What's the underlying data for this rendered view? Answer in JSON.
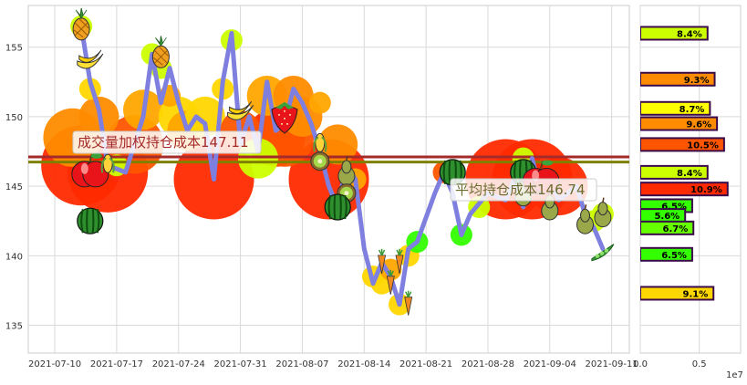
{
  "chart_data": [
    {
      "type": "line",
      "x_ticks": [
        "2021-07-10",
        "2021-07-17",
        "2021-07-24",
        "2021-07-31",
        "2021-08-07",
        "2021-08-14",
        "2021-08-21",
        "2021-08-28",
        "2021-09-04",
        "2021-09-11"
      ],
      "y_ticks": [
        "135",
        "140",
        "145",
        "150",
        "155"
      ],
      "ylim": [
        133,
        158
      ],
      "grid": true,
      "price_series": [
        {
          "x": "2021-07-13",
          "y": 156.5
        },
        {
          "x": "2021-07-14",
          "y": 152.5
        },
        {
          "x": "2021-07-15",
          "y": 150.5
        },
        {
          "x": "2021-07-16",
          "y": 146.5
        },
        {
          "x": "2021-07-18",
          "y": 146.0
        },
        {
          "x": "2021-07-19",
          "y": 148.0
        },
        {
          "x": "2021-07-20",
          "y": 150.0
        },
        {
          "x": "2021-07-21",
          "y": 154.5
        },
        {
          "x": "2021-07-22",
          "y": 151.0
        },
        {
          "x": "2021-07-23",
          "y": 153.5
        },
        {
          "x": "2021-07-24",
          "y": 151.0
        },
        {
          "x": "2021-07-25",
          "y": 149.0
        },
        {
          "x": "2021-07-26",
          "y": 150.0
        },
        {
          "x": "2021-07-27",
          "y": 149.5
        },
        {
          "x": "2021-07-28",
          "y": 145.5
        },
        {
          "x": "2021-07-29",
          "y": 152.5
        },
        {
          "x": "2021-07-30",
          "y": 156.0
        },
        {
          "x": "2021-07-31",
          "y": 148.0
        },
        {
          "x": "2021-08-01",
          "y": 150.0
        },
        {
          "x": "2021-08-02",
          "y": 147.5
        },
        {
          "x": "2021-08-03",
          "y": 152.5
        },
        {
          "x": "2021-08-04",
          "y": 149.0
        },
        {
          "x": "2021-08-05",
          "y": 149.5
        },
        {
          "x": "2021-08-06",
          "y": 152.0
        },
        {
          "x": "2021-08-07",
          "y": 151.0
        },
        {
          "x": "2021-08-08",
          "y": 149.5
        },
        {
          "x": "2021-08-09",
          "y": 147.5
        },
        {
          "x": "2021-08-10",
          "y": 145.0
        },
        {
          "x": "2021-08-11",
          "y": 143.5
        },
        {
          "x": "2021-08-12",
          "y": 146.5
        },
        {
          "x": "2021-08-13",
          "y": 145.5
        },
        {
          "x": "2021-08-14",
          "y": 140.5
        },
        {
          "x": "2021-08-15",
          "y": 138.0
        },
        {
          "x": "2021-08-16",
          "y": 139.5
        },
        {
          "x": "2021-08-17",
          "y": 138.5
        },
        {
          "x": "2021-08-18",
          "y": 136.5
        },
        {
          "x": "2021-08-19",
          "y": 140.5
        },
        {
          "x": "2021-08-20",
          "y": 141.0
        },
        {
          "x": "2021-08-22",
          "y": 144.5
        },
        {
          "x": "2021-08-23",
          "y": 146.0
        },
        {
          "x": "2021-08-24",
          "y": 144.5
        },
        {
          "x": "2021-08-25",
          "y": 141.5
        },
        {
          "x": "2021-08-26",
          "y": 143.0
        },
        {
          "x": "2021-08-28",
          "y": 144.5
        },
        {
          "x": "2021-08-30",
          "y": 144.0
        },
        {
          "x": "2021-08-31",
          "y": 145.5
        },
        {
          "x": "2021-09-01",
          "y": 143.5
        },
        {
          "x": "2021-09-02",
          "y": 147.0
        },
        {
          "x": "2021-09-03",
          "y": 144.5
        },
        {
          "x": "2021-09-04",
          "y": 145.5
        },
        {
          "x": "2021-09-05",
          "y": 144.0
        },
        {
          "x": "2021-09-07",
          "y": 145.0
        },
        {
          "x": "2021-09-08",
          "y": 143.0
        },
        {
          "x": "2021-09-09",
          "y": 142.0
        },
        {
          "x": "2021-09-10",
          "y": 140.5
        }
      ],
      "reference_lines": [
        {
          "label": "成交量加权持仓成本147.11",
          "y": 147.11,
          "color": "#a52a2a"
        },
        {
          "label": "平均持仓成本146.74",
          "y": 146.74,
          "color": "#808000"
        }
      ],
      "volume_bubbles": [
        {
          "x": "2021-07-12",
          "y": 148.5,
          "v": 3,
          "color": "#ff8c00"
        },
        {
          "x": "2021-07-13",
          "y": 146.5,
          "v": 4,
          "color": "#ff2a00"
        },
        {
          "x": "2021-07-13",
          "y": 156.5,
          "v": 1,
          "color": "#ccff00"
        },
        {
          "x": "2021-07-14",
          "y": 152.0,
          "v": 1,
          "color": "#ffd700"
        },
        {
          "x": "2021-07-15",
          "y": 150.0,
          "v": 2,
          "color": "#ff8c00"
        },
        {
          "x": "2021-07-16",
          "y": 146.0,
          "v": 4,
          "color": "#ff2a00"
        },
        {
          "x": "2021-07-17",
          "y": 146.5,
          "v": 1,
          "color": "#ccff00"
        },
        {
          "x": "2021-07-19",
          "y": 148.0,
          "v": 3,
          "color": "#ff5500"
        },
        {
          "x": "2021-07-20",
          "y": 150.5,
          "v": 2,
          "color": "#ffa500"
        },
        {
          "x": "2021-07-21",
          "y": 154.5,
          "v": 1,
          "color": "#ccff00"
        },
        {
          "x": "2021-07-22",
          "y": 153.5,
          "v": 1,
          "color": "#ccff00"
        },
        {
          "x": "2021-07-23",
          "y": 151.5,
          "v": 1,
          "color": "#ffa500"
        },
        {
          "x": "2021-07-24",
          "y": 150.0,
          "v": 2,
          "color": "#ffd700"
        },
        {
          "x": "2021-07-25",
          "y": 149.0,
          "v": 2,
          "color": "#ffa500"
        },
        {
          "x": "2021-07-27",
          "y": 150.0,
          "v": 2,
          "color": "#ffd700"
        },
        {
          "x": "2021-07-28",
          "y": 145.5,
          "v": 4,
          "color": "#ff2a00"
        },
        {
          "x": "2021-07-29",
          "y": 152.0,
          "v": 1,
          "color": "#ffd700"
        },
        {
          "x": "2021-07-30",
          "y": 155.5,
          "v": 1,
          "color": "#ccff00"
        },
        {
          "x": "2021-07-31",
          "y": 149.0,
          "v": 2,
          "color": "#ff5500"
        },
        {
          "x": "2021-08-02",
          "y": 147.0,
          "v": 2,
          "color": "#ccff00"
        },
        {
          "x": "2021-08-03",
          "y": 151.5,
          "v": 2,
          "color": "#ffa500"
        },
        {
          "x": "2021-08-04",
          "y": 148.5,
          "v": 3,
          "color": "#ff2a00"
        },
        {
          "x": "2021-08-05",
          "y": 148.5,
          "v": 3,
          "color": "#ff5500"
        },
        {
          "x": "2021-08-06",
          "y": 151.5,
          "v": 2,
          "color": "#ff8c00"
        },
        {
          "x": "2021-08-07",
          "y": 150.0,
          "v": 2,
          "color": "#ff8c00"
        },
        {
          "x": "2021-08-09",
          "y": 151.0,
          "v": 1,
          "color": "#ffa500"
        },
        {
          "x": "2021-08-10",
          "y": 145.5,
          "v": 4,
          "color": "#ff2a00"
        },
        {
          "x": "2021-08-11",
          "y": 148.0,
          "v": 2,
          "color": "#ff8c00"
        },
        {
          "x": "2021-08-13",
          "y": 145.5,
          "v": 1,
          "color": "#ffa500"
        },
        {
          "x": "2021-08-15",
          "y": 138.5,
          "v": 1,
          "color": "#ffd700"
        },
        {
          "x": "2021-08-16",
          "y": 138.0,
          "v": 1,
          "color": "#ffd700"
        },
        {
          "x": "2021-08-17",
          "y": 139.0,
          "v": 1,
          "color": "#ffa500"
        },
        {
          "x": "2021-08-18",
          "y": 136.5,
          "v": 1,
          "color": "#ffd700"
        },
        {
          "x": "2021-08-19",
          "y": 140.0,
          "v": 1,
          "color": "#ffd700"
        },
        {
          "x": "2021-08-20",
          "y": 141.0,
          "v": 1,
          "color": "#33ff00"
        },
        {
          "x": "2021-08-23",
          "y": 146.0,
          "v": 1,
          "color": "#ff5500"
        },
        {
          "x": "2021-08-25",
          "y": 141.5,
          "v": 1,
          "color": "#33ff00"
        },
        {
          "x": "2021-08-27",
          "y": 143.5,
          "v": 1,
          "color": "#ccff00"
        },
        {
          "x": "2021-08-30",
          "y": 145.5,
          "v": 4,
          "color": "#ff2a00"
        },
        {
          "x": "2021-09-01",
          "y": 147.0,
          "v": 1,
          "color": "#ccff00"
        },
        {
          "x": "2021-09-02",
          "y": 145.5,
          "v": 4,
          "color": "#ff2a00"
        },
        {
          "x": "2021-09-05",
          "y": 145.0,
          "v": 3,
          "color": "#ff2a00"
        },
        {
          "x": "2021-09-09",
          "y": 142.5,
          "v": 1,
          "color": "#ccff00"
        },
        {
          "x": "2021-09-10",
          "y": 143.0,
          "v": 1,
          "color": "#ccff00"
        }
      ],
      "fruit_markers": [
        {
          "x": "2021-07-13",
          "y": 156.5,
          "fruit": "pineapple"
        },
        {
          "x": "2021-07-14",
          "y": 154.0,
          "fruit": "banana"
        },
        {
          "x": "2021-07-14",
          "y": 146.0,
          "fruit": "apple"
        },
        {
          "x": "2021-07-14",
          "y": 142.5,
          "fruit": "watermelon"
        },
        {
          "x": "2021-07-16",
          "y": 146.5,
          "fruit": "corn"
        },
        {
          "x": "2021-07-22",
          "y": 154.5,
          "fruit": "pineapple"
        },
        {
          "x": "2021-07-31",
          "y": 150.3,
          "fruit": "banana"
        },
        {
          "x": "2021-08-05",
          "y": 150.0,
          "fruit": "strawberry"
        },
        {
          "x": "2021-08-09",
          "y": 148.0,
          "fruit": "corn"
        },
        {
          "x": "2021-08-09",
          "y": 146.8,
          "fruit": "kiwi"
        },
        {
          "x": "2021-08-12",
          "y": 146.0,
          "fruit": "pear"
        },
        {
          "x": "2021-08-12",
          "y": 144.5,
          "fruit": "kiwi"
        },
        {
          "x": "2021-08-11",
          "y": 143.5,
          "fruit": "watermelon"
        },
        {
          "x": "2021-08-16",
          "y": 139.5,
          "fruit": "carrot"
        },
        {
          "x": "2021-08-17",
          "y": 138.0,
          "fruit": "carrot"
        },
        {
          "x": "2021-08-18",
          "y": 139.5,
          "fruit": "carrot"
        },
        {
          "x": "2021-08-19",
          "y": 136.5,
          "fruit": "carrot"
        },
        {
          "x": "2021-08-24",
          "y": 146.0,
          "fruit": "watermelon"
        },
        {
          "x": "2021-09-01",
          "y": 146.0,
          "fruit": "watermelon"
        },
        {
          "x": "2021-09-01",
          "y": 144.5,
          "fruit": "pear"
        },
        {
          "x": "2021-09-03",
          "y": 145.5,
          "fruit": "apple"
        },
        {
          "x": "2021-09-04",
          "y": 143.5,
          "fruit": "pear"
        },
        {
          "x": "2021-09-08",
          "y": 142.5,
          "fruit": "pear"
        },
        {
          "x": "2021-09-10",
          "y": 143.0,
          "fruit": "pear"
        },
        {
          "x": "2021-09-10",
          "y": 140.3,
          "fruit": "peapod"
        }
      ]
    },
    {
      "type": "bar",
      "orientation": "horizontal",
      "x_ticks": [
        "0.0",
        "0.5"
      ],
      "xlim": [
        0,
        8500000
      ],
      "x_offset_label": "1e7",
      "bars": [
        {
          "price": 156.0,
          "volume": 5700000,
          "label": "8.4%",
          "color": "#ccff00"
        },
        {
          "price": 152.7,
          "volume": 6300000,
          "label": "9.3%",
          "color": "#ff8c00"
        },
        {
          "price": 150.6,
          "volume": 5900000,
          "label": "8.7%",
          "color": "#ffff00"
        },
        {
          "price": 149.5,
          "volume": 6500000,
          "label": "9.6%",
          "color": "#ff8c00"
        },
        {
          "price": 148.0,
          "volume": 7100000,
          "label": "10.5%",
          "color": "#ff5500"
        },
        {
          "price": 146.0,
          "volume": 5700000,
          "label": "8.4%",
          "color": "#ccff00"
        },
        {
          "price": 144.8,
          "volume": 7400000,
          "label": "10.9%",
          "color": "#ff2a00"
        },
        {
          "price": 143.6,
          "volume": 4400000,
          "label": "6.5%",
          "color": "#33ff00"
        },
        {
          "price": 142.9,
          "volume": 3800000,
          "label": "5.6%",
          "color": "#33ff00"
        },
        {
          "price": 142.0,
          "volume": 4500000,
          "label": "6.7%",
          "color": "#66ff00"
        },
        {
          "price": 140.1,
          "volume": 4400000,
          "label": "6.5%",
          "color": "#33ff00"
        },
        {
          "price": 137.3,
          "volume": 6200000,
          "label": "9.1%",
          "color": "#ffd700"
        }
      ]
    }
  ]
}
